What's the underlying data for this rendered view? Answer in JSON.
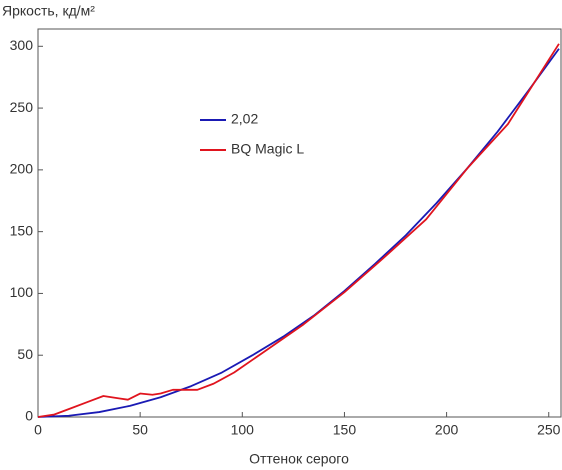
{
  "chart_data": {
    "type": "line",
    "y_label": "Яркость, кд/м²",
    "x_label": "Оттенок серого",
    "xlim": [
      0,
      256
    ],
    "xticks": [
      0,
      50,
      100,
      150,
      200,
      250
    ],
    "ylim": [
      0,
      314
    ],
    "yticks": [
      0,
      50,
      100,
      150,
      200,
      250,
      300
    ],
    "series": [
      {
        "name": "2,02",
        "color": "#1a1ab4",
        "x": [
          0,
          15,
          30,
          45,
          60,
          75,
          90,
          105,
          120,
          135,
          150,
          165,
          180,
          195,
          210,
          225,
          240,
          255
        ],
        "values": [
          0,
          1,
          4,
          9,
          16,
          25,
          36,
          50,
          65,
          82,
          102,
          124,
          147,
          173,
          201,
          231,
          264,
          298
        ]
      },
      {
        "name": "BQ Magic L",
        "color": "#e0141e",
        "x": [
          0,
          8,
          16,
          24,
          32,
          36,
          40,
          44,
          50,
          56,
          60,
          66,
          72,
          78,
          86,
          96,
          110,
          130,
          150,
          170,
          190,
          210,
          230,
          255
        ],
        "values": [
          0,
          2,
          7,
          12,
          17,
          16,
          15,
          14,
          19,
          18,
          19,
          22,
          22,
          22,
          27,
          36,
          52,
          75,
          101,
          130,
          160,
          201,
          237,
          302
        ]
      }
    ]
  }
}
